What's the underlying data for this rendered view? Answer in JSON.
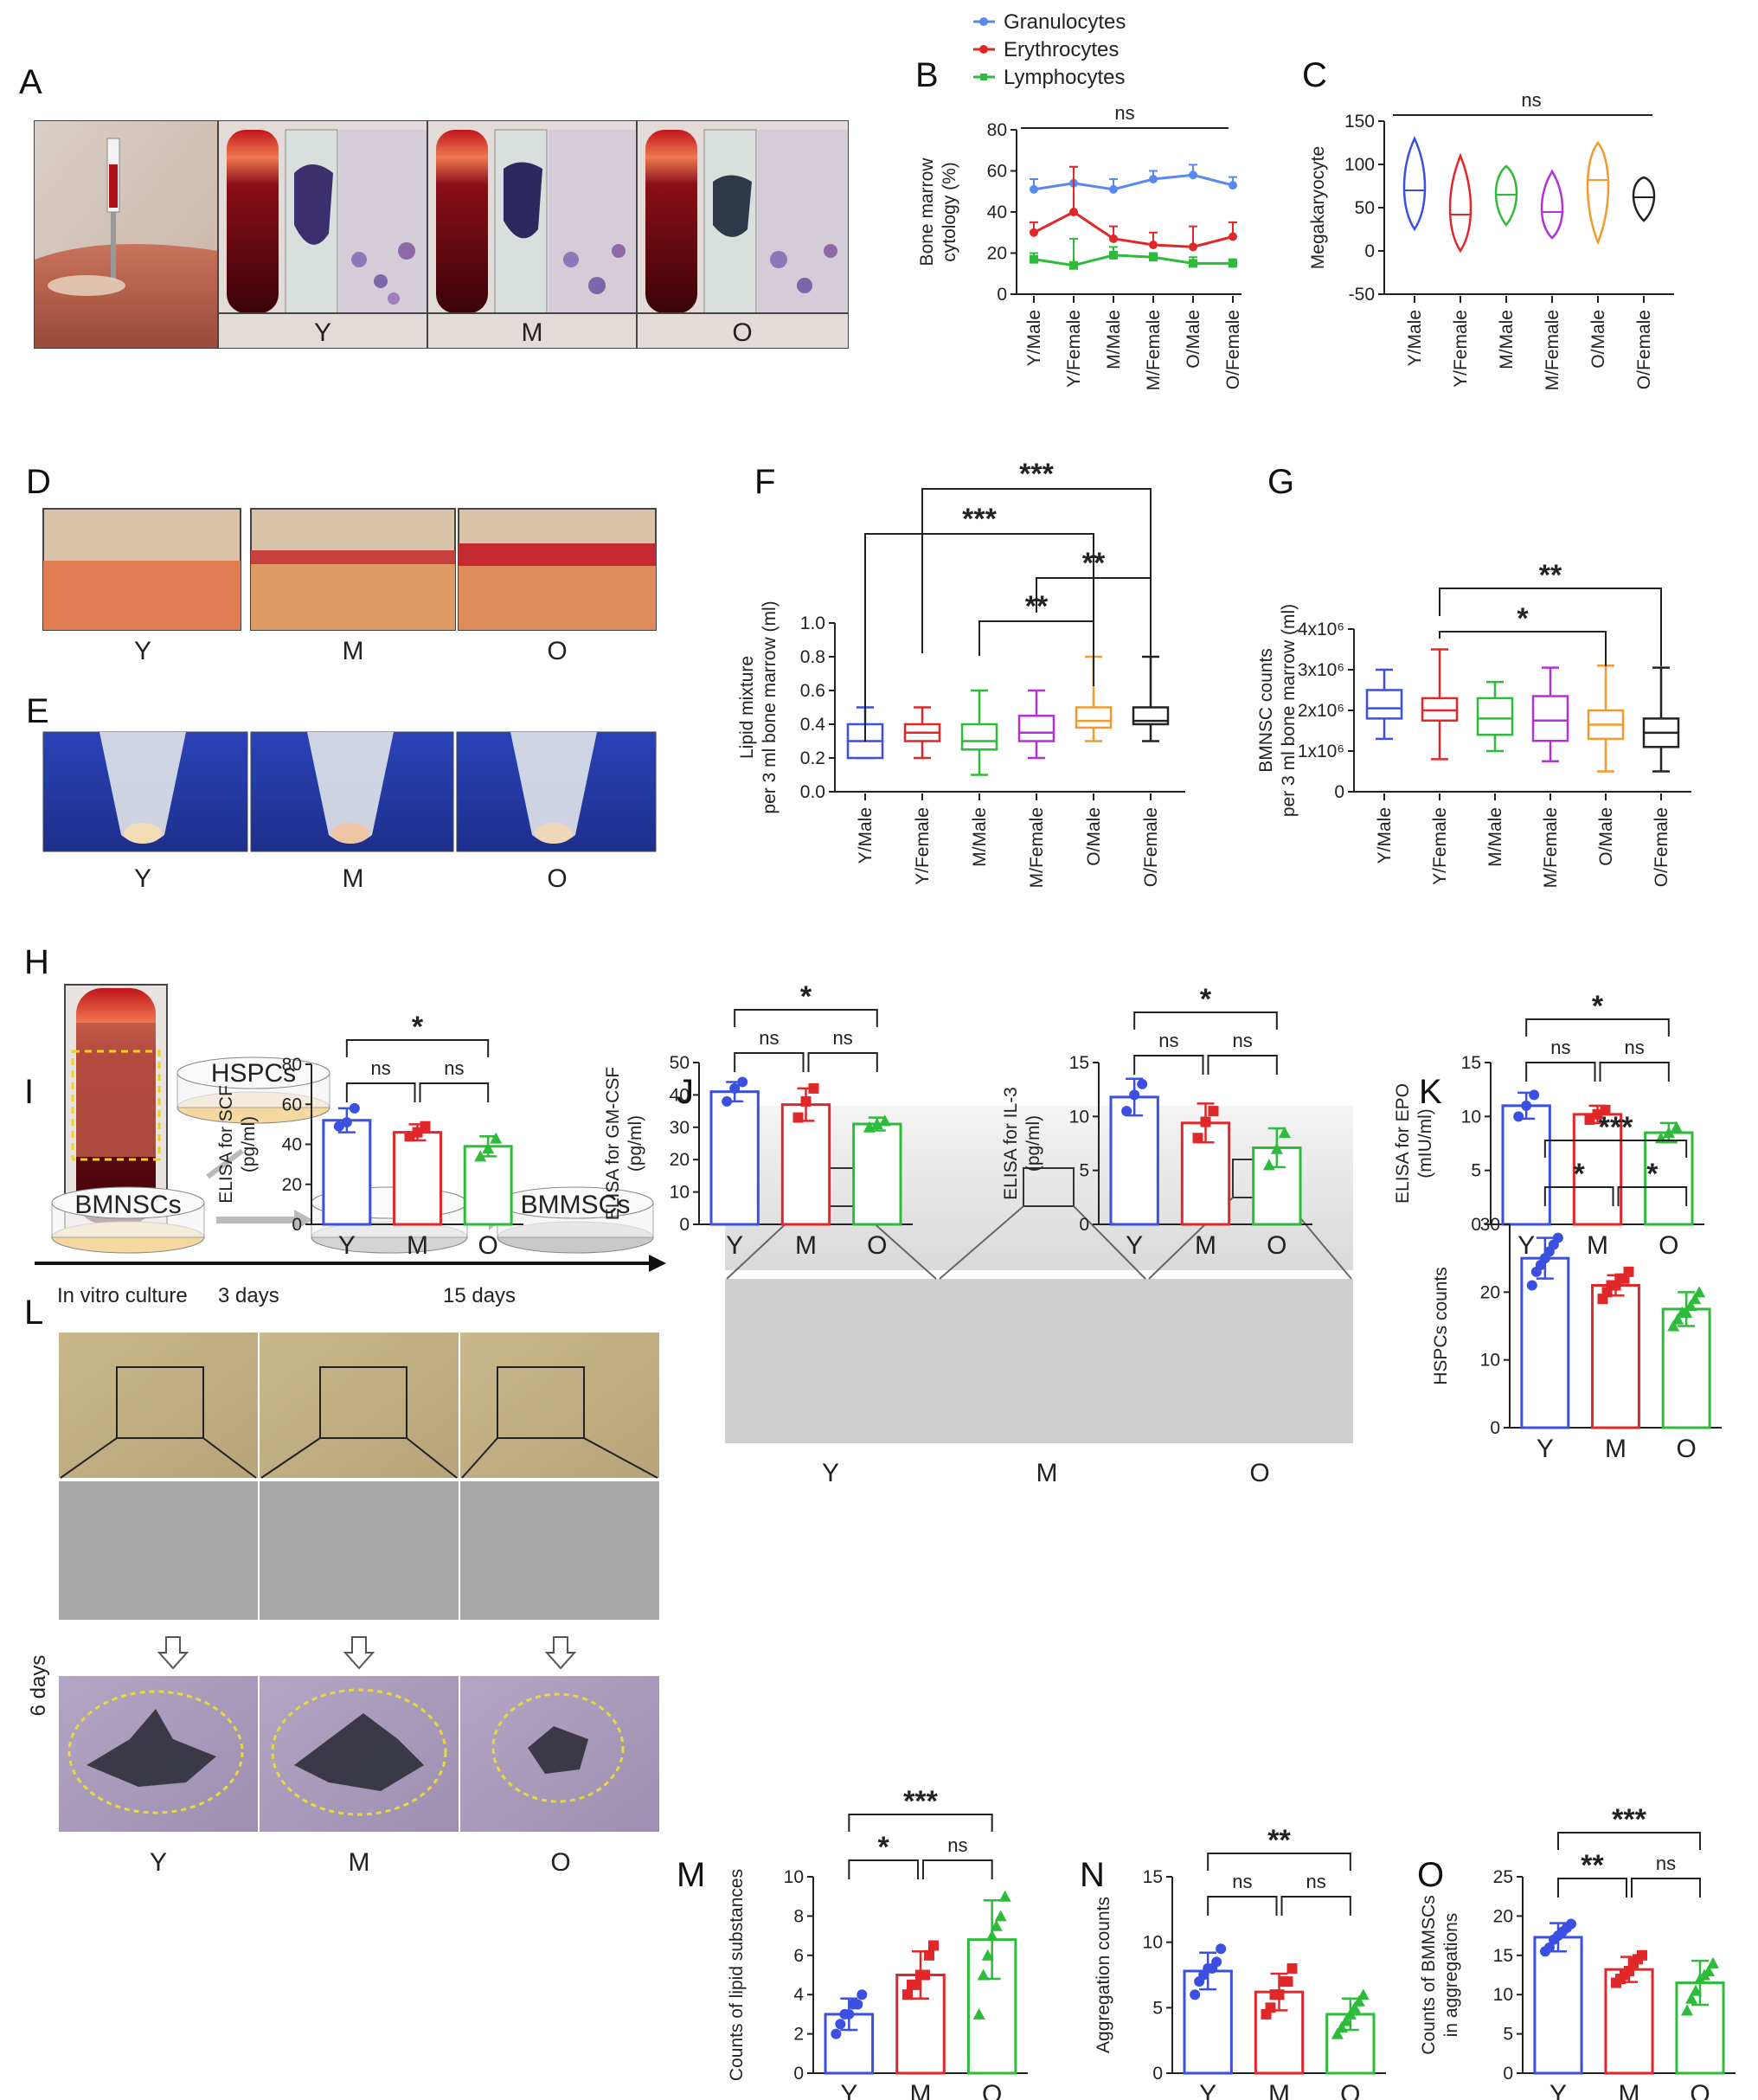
{
  "panel_letters": [
    "A",
    "B",
    "C",
    "D",
    "E",
    "F",
    "G",
    "H",
    "I",
    "J",
    "K",
    "L",
    "M",
    "N",
    "O"
  ],
  "groups": [
    "Y",
    "M",
    "O"
  ],
  "groups_sex": [
    "Y/Male",
    "Y/Female",
    "M/Male",
    "M/Female",
    "O/Male",
    "O/Female"
  ],
  "schematic": {
    "hspcs": "HSPCs",
    "bmnscs": "BMNSCs",
    "bmmscs": "BMMSCs",
    "in_vitro": "In vitro culture",
    "three_days": "3 days",
    "fifteen_days": "15 days",
    "six_days": "6 days"
  },
  "colors": {
    "blue": "#3b4fe0",
    "red": "#e0282a",
    "green": "#2dbb3a",
    "purple": "#b231d8",
    "orange": "#f29a2e",
    "black": "#222222",
    "gran": "#5b87f0",
    "eryth": "#e0282a",
    "lymph": "#2dbb3a"
  },
  "chart_data": [
    {
      "id": "B",
      "type": "line",
      "ylabel": "Bone marrow cytology (%)",
      "categories": [
        "Y/Male",
        "Y/Female",
        "M/Male",
        "M/Female",
        "O/Male",
        "O/Female"
      ],
      "ylim": [
        0,
        80
      ],
      "yticks": [
        0,
        20,
        40,
        60,
        80
      ],
      "sig": "ns",
      "series": [
        {
          "name": "Granulocytes",
          "values": [
            51,
            54,
            51,
            56,
            58,
            53
          ],
          "err": [
            5,
            8,
            5,
            4,
            5,
            4
          ]
        },
        {
          "name": "Erythrocytes",
          "values": [
            30,
            40,
            27,
            24,
            23,
            28
          ],
          "err": [
            5,
            22,
            6,
            6,
            10,
            7
          ]
        },
        {
          "name": "Lymphocytes",
          "values": [
            17,
            14,
            19,
            18,
            15,
            15
          ],
          "err": [
            3,
            13,
            4,
            2,
            3,
            2
          ]
        }
      ]
    },
    {
      "id": "C",
      "type": "violin",
      "ylabel": "Megakaryocyte",
      "categories": [
        "Y/Male",
        "Y/Female",
        "M/Male",
        "M/Female",
        "O/Male",
        "O/Female"
      ],
      "ylim": [
        -50,
        150
      ],
      "yticks": [
        -50,
        0,
        50,
        100,
        150
      ],
      "sig": "ns",
      "violins": [
        {
          "min": 25,
          "max": 130,
          "median": 70,
          "q1": 55,
          "q3": 85,
          "peak": 65
        },
        {
          "min": 0,
          "max": 110,
          "median": 42,
          "q1": 30,
          "q3": 60,
          "peak": 45
        },
        {
          "min": 30,
          "max": 98,
          "median": 65,
          "q1": 55,
          "q3": 75,
          "peak": 70
        },
        {
          "min": 15,
          "max": 92,
          "median": 45,
          "q1": 35,
          "q3": 55,
          "peak": 45
        },
        {
          "min": 10,
          "max": 125,
          "median": 82,
          "q1": 55,
          "q3": 95,
          "peak": 85
        },
        {
          "min": 35,
          "max": 85,
          "median": 62,
          "q1": 55,
          "q3": 70,
          "peak": 62
        }
      ]
    },
    {
      "id": "F",
      "type": "box",
      "ylabel": "Lipid mixture",
      "ylabel2": "per 3 ml bone marrow (ml)",
      "categories": [
        "Y/Male",
        "Y/Female",
        "M/Male",
        "M/Female",
        "O/Male",
        "O/Female"
      ],
      "ylim": [
        0,
        1.0
      ],
      "yticks": [
        "0.0",
        "0.2",
        "0.4",
        "0.6",
        "0.8",
        "1.0"
      ],
      "boxes": [
        {
          "min": 0.2,
          "q1": 0.2,
          "median": 0.3,
          "q3": 0.4,
          "max": 0.5
        },
        {
          "min": 0.2,
          "q1": 0.3,
          "median": 0.35,
          "q3": 0.4,
          "max": 0.5
        },
        {
          "min": 0.1,
          "q1": 0.25,
          "median": 0.3,
          "q3": 0.4,
          "max": 0.6
        },
        {
          "min": 0.2,
          "q1": 0.3,
          "median": 0.35,
          "q3": 0.45,
          "max": 0.6
        },
        {
          "min": 0.3,
          "q1": 0.38,
          "median": 0.42,
          "q3": 0.5,
          "max": 0.8
        },
        {
          "min": 0.3,
          "q1": 0.4,
          "median": 0.42,
          "q3": 0.5,
          "max": 0.8
        }
      ],
      "brackets": [
        {
          "from": 1,
          "to": 5,
          "label": "***"
        },
        {
          "from": 0,
          "to": 4,
          "label": "***"
        },
        {
          "from": 3,
          "to": 5,
          "label": "**"
        },
        {
          "from": 2,
          "to": 4,
          "label": "**"
        }
      ]
    },
    {
      "id": "G",
      "type": "box",
      "ylabel": "BMNSC counts",
      "ylabel2": "per 3 ml bone marrow (ml)",
      "categories": [
        "Y/Male",
        "Y/Female",
        "M/Male",
        "M/Female",
        "O/Male",
        "O/Female"
      ],
      "ylim": [
        0,
        4
      ],
      "yticks": [
        "0",
        "1x10⁶",
        "2x10⁶",
        "3x10⁶",
        "4x10⁶"
      ],
      "boxes": [
        {
          "min": 1.3,
          "q1": 1.8,
          "median": 2.05,
          "q3": 2.5,
          "max": 3.0
        },
        {
          "min": 0.8,
          "q1": 1.75,
          "median": 2.0,
          "q3": 2.3,
          "max": 3.5
        },
        {
          "min": 1.0,
          "q1": 1.4,
          "median": 1.8,
          "q3": 2.3,
          "max": 2.7
        },
        {
          "min": 0.75,
          "q1": 1.25,
          "median": 1.75,
          "q3": 2.35,
          "max": 3.05
        },
        {
          "min": 0.5,
          "q1": 1.3,
          "median": 1.65,
          "q3": 2.0,
          "max": 3.1
        },
        {
          "min": 0.5,
          "q1": 1.1,
          "median": 1.45,
          "q3": 1.8,
          "max": 3.05
        }
      ],
      "brackets": [
        {
          "from": 1,
          "to": 5,
          "label": "**"
        },
        {
          "from": 1,
          "to": 4,
          "label": "*"
        }
      ]
    },
    {
      "id": "H1",
      "type": "bar",
      "ylabel": "ELISA for SCF",
      "ylabel2": "(pg/ml)",
      "categories": [
        "Y",
        "M",
        "O"
      ],
      "ylim": [
        0,
        80
      ],
      "yticks": [
        0,
        20,
        40,
        60,
        80
      ],
      "values": [
        52,
        46,
        39
      ],
      "err": [
        6,
        4,
        5
      ],
      "points": [
        [
          49,
          51,
          58
        ],
        [
          44,
          46,
          49
        ],
        [
          34,
          38,
          43
        ]
      ],
      "brackets": [
        {
          "from": 0,
          "to": 2,
          "label": "*"
        },
        {
          "from": 0,
          "to": 1,
          "label": "ns"
        },
        {
          "from": 1,
          "to": 2,
          "label": "ns"
        }
      ]
    },
    {
      "id": "H2",
      "type": "bar",
      "ylabel": "ELISA for GM-CSF",
      "ylabel2": "(pg/ml)",
      "categories": [
        "Y",
        "M",
        "O"
      ],
      "ylim": [
        0,
        50
      ],
      "yticks": [
        0,
        10,
        20,
        30,
        40,
        50
      ],
      "values": [
        41,
        37,
        31
      ],
      "err": [
        3,
        5,
        2
      ],
      "points": [
        [
          38,
          42,
          44
        ],
        [
          33,
          38,
          42
        ],
        [
          30,
          31,
          32
        ]
      ],
      "brackets": [
        {
          "from": 0,
          "to": 2,
          "label": "*"
        },
        {
          "from": 0,
          "to": 1,
          "label": "ns"
        },
        {
          "from": 1,
          "to": 2,
          "label": "ns"
        }
      ]
    },
    {
      "id": "H3",
      "type": "bar",
      "ylabel": "ELISA for IL-3",
      "ylabel2": "(pg/ml)",
      "categories": [
        "Y",
        "M",
        "O"
      ],
      "ylim": [
        0,
        15
      ],
      "yticks": [
        0,
        5,
        10,
        15
      ],
      "values": [
        11.8,
        9.4,
        7.1
      ],
      "err": [
        1.7,
        1.8,
        1.8
      ],
      "points": [
        [
          10.5,
          12,
          13
        ],
        [
          8,
          9.5,
          10.5
        ],
        [
          5.5,
          7,
          8.5
        ]
      ],
      "brackets": [
        {
          "from": 0,
          "to": 2,
          "label": "*"
        },
        {
          "from": 0,
          "to": 1,
          "label": "ns"
        },
        {
          "from": 1,
          "to": 2,
          "label": "ns"
        }
      ]
    },
    {
      "id": "H4",
      "type": "bar",
      "ylabel": "ELISA for EPO",
      "ylabel2": "(mIU/ml)",
      "categories": [
        "Y",
        "M",
        "O"
      ],
      "ylim": [
        0,
        15
      ],
      "yticks": [
        0,
        5,
        10,
        15
      ],
      "values": [
        11.0,
        10.2,
        8.5
      ],
      "err": [
        1.2,
        0.8,
        0.9
      ],
      "points": [
        [
          10,
          11,
          12
        ],
        [
          9.7,
          10.2,
          10.6
        ],
        [
          8,
          8.5,
          9
        ]
      ],
      "brackets": [
        {
          "from": 0,
          "to": 2,
          "label": "*"
        },
        {
          "from": 0,
          "to": 1,
          "label": "ns"
        },
        {
          "from": 1,
          "to": 2,
          "label": "ns"
        }
      ]
    },
    {
      "id": "K",
      "type": "bar",
      "ylabel": "HSPCs counts",
      "categories": [
        "Y",
        "M",
        "O"
      ],
      "ylim": [
        0,
        30
      ],
      "yticks": [
        0,
        10,
        20,
        30
      ],
      "values": [
        25,
        21,
        17.5
      ],
      "err": [
        3,
        1.5,
        2.5
      ],
      "points": [
        [
          21,
          23,
          24,
          25,
          26,
          27,
          28
        ],
        [
          19,
          20,
          21,
          21,
          22,
          22,
          23
        ],
        [
          15,
          16,
          17,
          17,
          18,
          19,
          20
        ]
      ],
      "brackets": [
        {
          "from": 0,
          "to": 2,
          "label": "***"
        },
        {
          "from": 0,
          "to": 1,
          "label": "*"
        },
        {
          "from": 1,
          "to": 2,
          "label": "*"
        }
      ]
    },
    {
      "id": "M",
      "type": "bar",
      "ylabel": "Counts of lipid substances",
      "categories": [
        "Y",
        "M",
        "O"
      ],
      "ylim": [
        0,
        10
      ],
      "yticks": [
        0,
        2,
        4,
        6,
        8,
        10
      ],
      "values": [
        3.0,
        5.0,
        6.8
      ],
      "err": [
        0.8,
        1.2,
        2.0
      ],
      "points": [
        [
          2,
          2.5,
          3,
          3,
          3.5,
          3.5,
          4
        ],
        [
          4,
          4.5,
          4.5,
          5,
          5,
          6,
          6.5
        ],
        [
          3,
          5,
          6,
          7,
          7.5,
          8,
          9
        ]
      ],
      "brackets": [
        {
          "from": 0,
          "to": 2,
          "label": "***"
        },
        {
          "from": 0,
          "to": 1,
          "label": "*"
        },
        {
          "from": 1,
          "to": 2,
          "label": "ns"
        }
      ]
    },
    {
      "id": "N",
      "type": "bar",
      "ylabel": "Aggregation counts",
      "categories": [
        "Y",
        "M",
        "O"
      ],
      "ylim": [
        0,
        15
      ],
      "yticks": [
        0,
        5,
        10,
        15
      ],
      "values": [
        7.8,
        6.2,
        4.5
      ],
      "err": [
        1.4,
        1.4,
        1.2
      ],
      "points": [
        [
          6,
          7,
          7.5,
          8,
          8,
          8.5,
          9.5
        ],
        [
          4.5,
          5,
          6,
          6,
          7,
          7,
          8
        ],
        [
          3,
          3.5,
          4,
          4.5,
          5,
          5.5,
          6
        ]
      ],
      "brackets": [
        {
          "from": 0,
          "to": 2,
          "label": "**"
        },
        {
          "from": 0,
          "to": 1,
          "label": "ns"
        },
        {
          "from": 1,
          "to": 2,
          "label": "ns"
        }
      ]
    },
    {
      "id": "O",
      "type": "bar",
      "ylabel": "Counts of BMMSCs",
      "ylabel2": "in aggregations",
      "categories": [
        "Y",
        "M",
        "O"
      ],
      "ylim": [
        0,
        25
      ],
      "yticks": [
        0,
        5,
        10,
        15,
        20,
        25
      ],
      "values": [
        17.3,
        13.2,
        11.5
      ],
      "err": [
        1.8,
        1.6,
        2.8
      ],
      "points": [
        [
          15.5,
          16,
          17,
          17.5,
          18,
          18.5,
          19
        ],
        [
          11.5,
          12,
          12.5,
          13,
          14,
          14.5,
          15
        ],
        [
          8,
          9.5,
          10.5,
          12,
          12.5,
          13,
          14
        ]
      ],
      "brackets": [
        {
          "from": 0,
          "to": 2,
          "label": "***"
        },
        {
          "from": 0,
          "to": 1,
          "label": "**"
        },
        {
          "from": 1,
          "to": 2,
          "label": "ns"
        }
      ]
    }
  ]
}
